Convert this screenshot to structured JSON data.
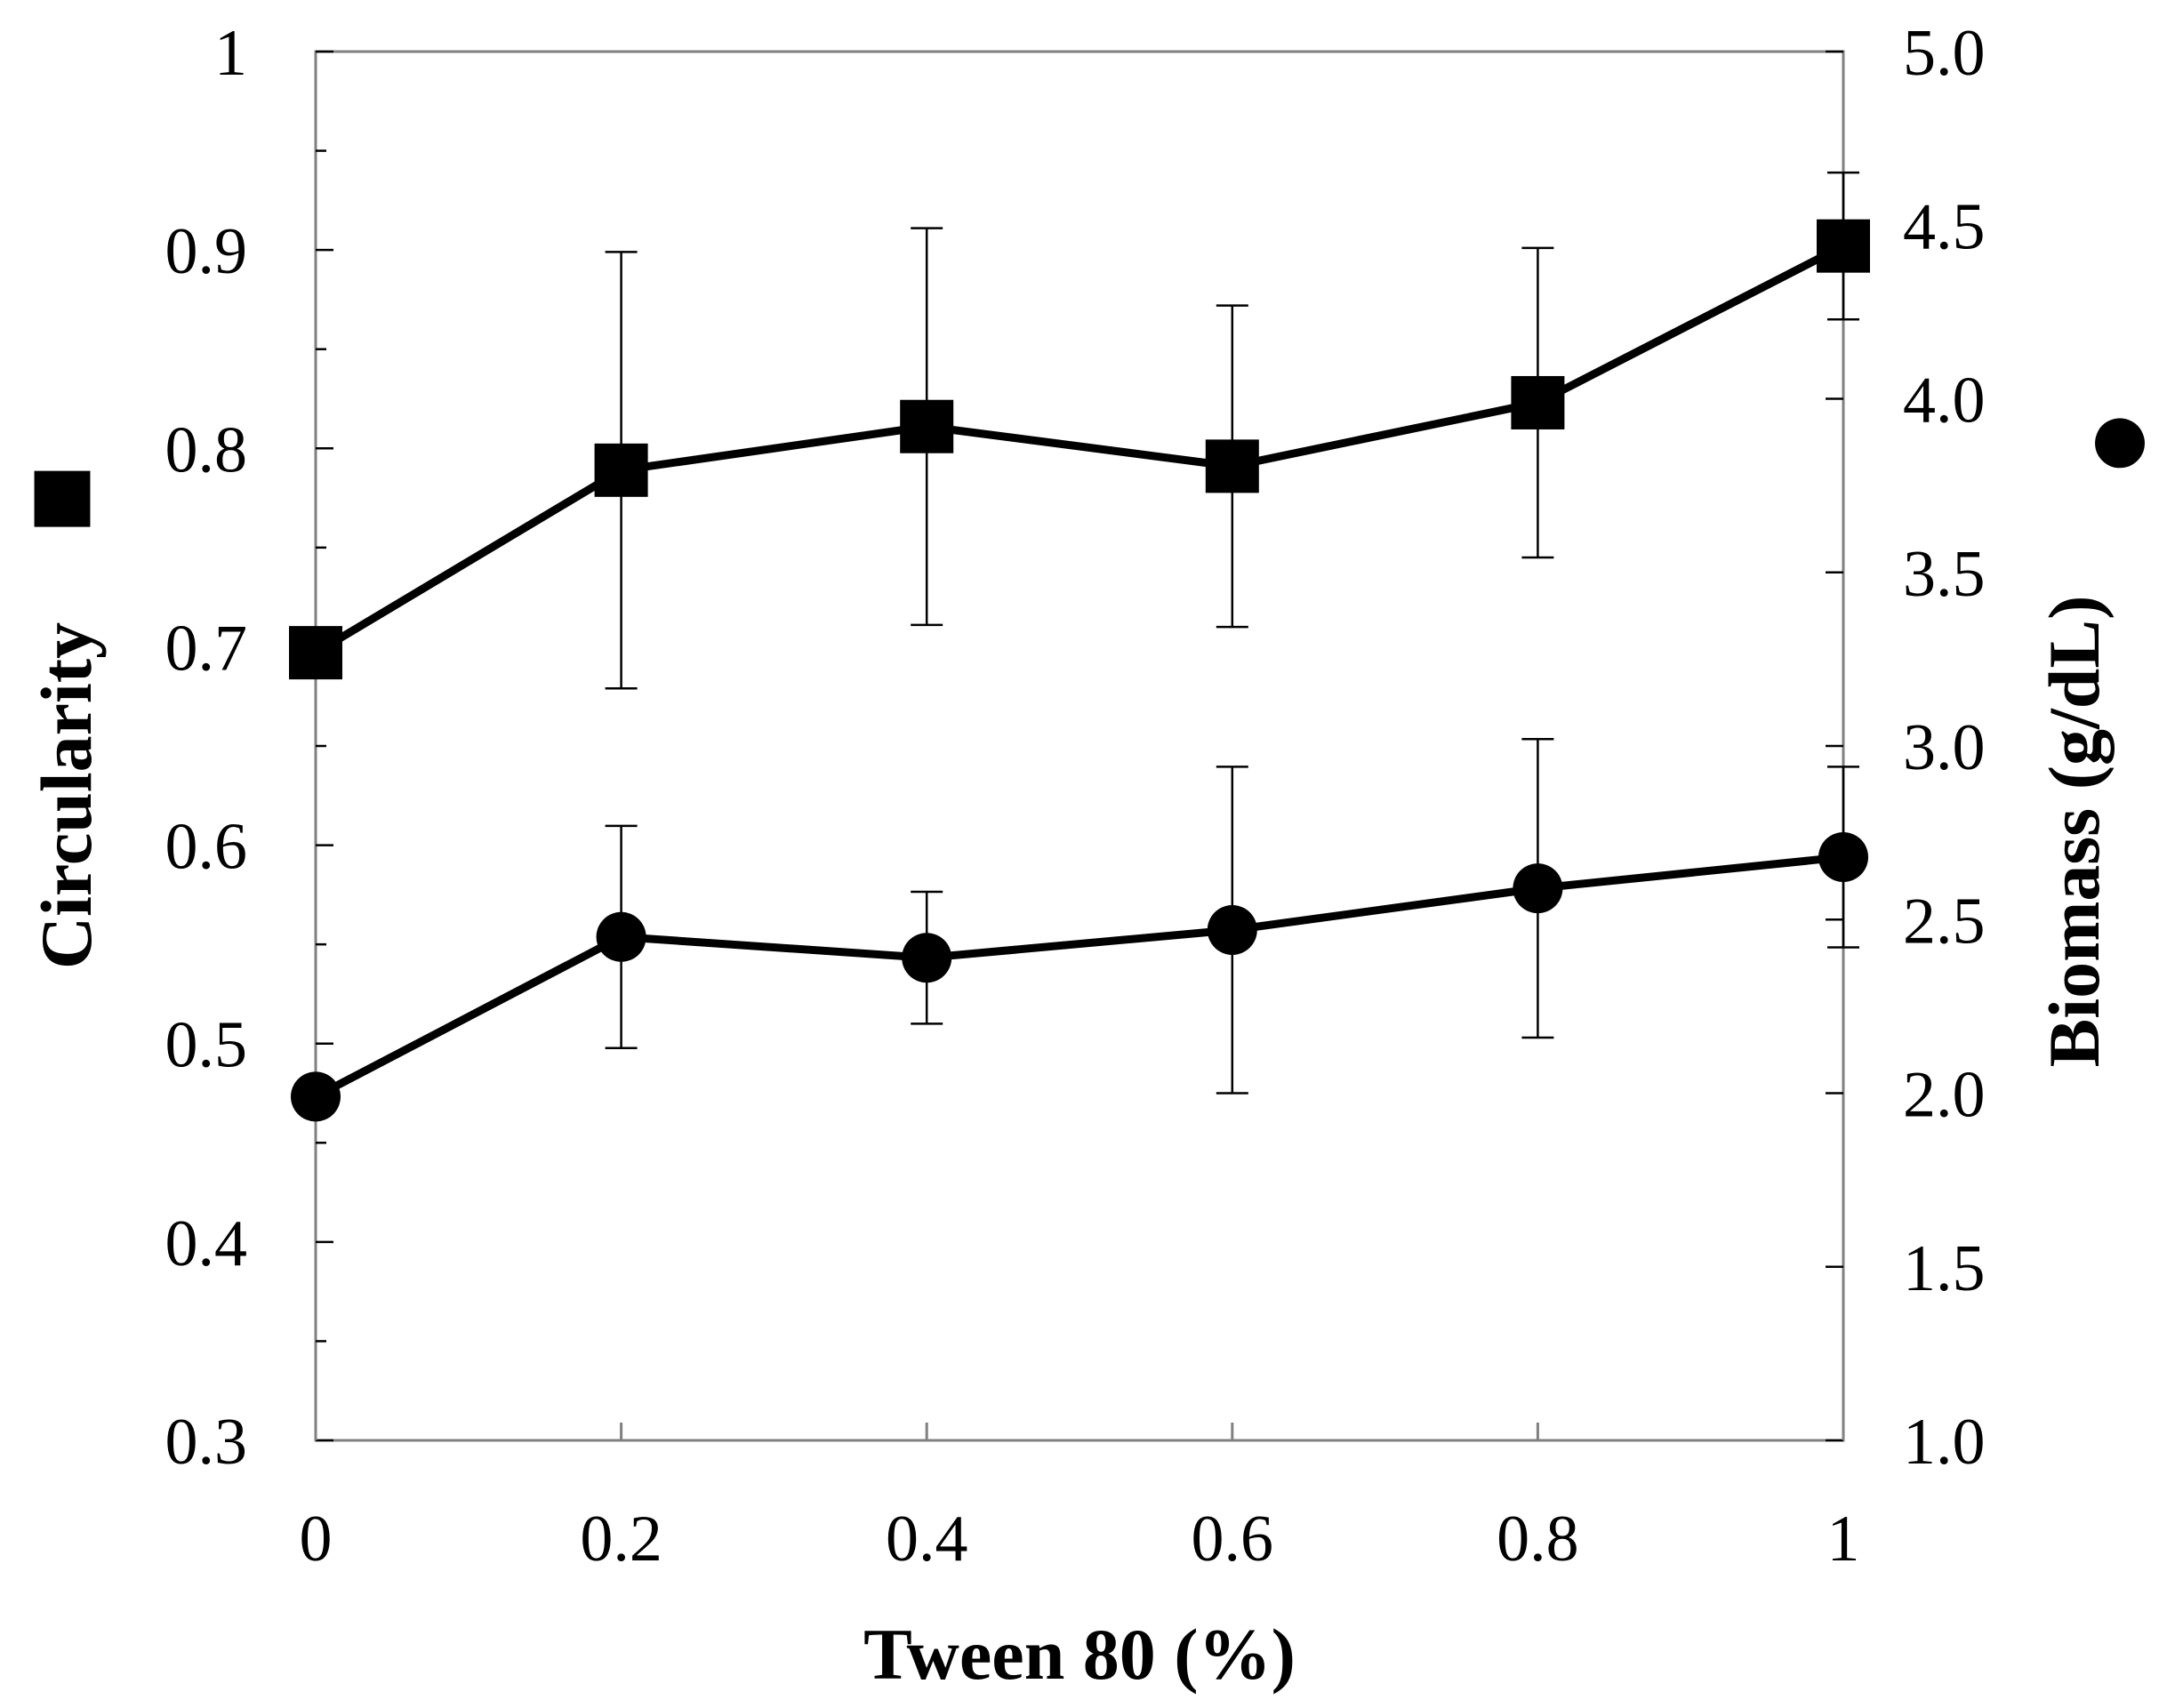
{
  "chart_data": {
    "type": "line",
    "title": "",
    "xlabel": "Tween 80 (%)",
    "ylabel": "Circularity",
    "y2label": "Biomass (g/dL)",
    "x": [
      0,
      0.2,
      0.4,
      0.6,
      0.8,
      1
    ],
    "x_tick_labels": [
      "0",
      "0.2",
      "0.4",
      "0.6",
      "0.8",
      "1"
    ],
    "xlim": [
      0,
      1
    ],
    "ylim": [
      0.3,
      1
    ],
    "y_tick_labels": [
      "0.3",
      "0.4",
      "0.5",
      "0.6",
      "0.7",
      "0.8",
      "0.9",
      "1"
    ],
    "y_ticks": [
      0.3,
      0.4,
      0.5,
      0.6,
      0.7,
      0.8,
      0.9,
      1
    ],
    "y2lim": [
      1.0,
      5.0
    ],
    "y2_tick_labels": [
      "1.0",
      "1.5",
      "2.0",
      "2.5",
      "3.0",
      "3.5",
      "4.0",
      "4.5",
      "5.0"
    ],
    "y2_ticks": [
      1.0,
      1.5,
      2.0,
      2.5,
      3.0,
      3.5,
      4.0,
      4.5,
      5.0
    ],
    "grid": false,
    "series": [
      {
        "name": "Circularity",
        "marker": "square",
        "axis": "left",
        "values": [
          0.697,
          0.789,
          0.811,
          0.791,
          0.823,
          0.902
        ],
        "error": [
          0,
          0.11,
          0.1,
          0.081,
          0.078,
          0.037
        ]
      },
      {
        "name": "Biomass",
        "marker": "circle",
        "axis": "right",
        "values": [
          1.99,
          2.45,
          2.39,
          2.47,
          2.59,
          2.68
        ],
        "error": [
          0,
          0.32,
          0.19,
          0.47,
          0.43,
          0.26
        ]
      }
    ],
    "legend_symbols": {
      "left": "■",
      "right": "●"
    },
    "colors": {
      "line": "#000000",
      "frame": "#808080",
      "background": "#ffffff"
    }
  }
}
